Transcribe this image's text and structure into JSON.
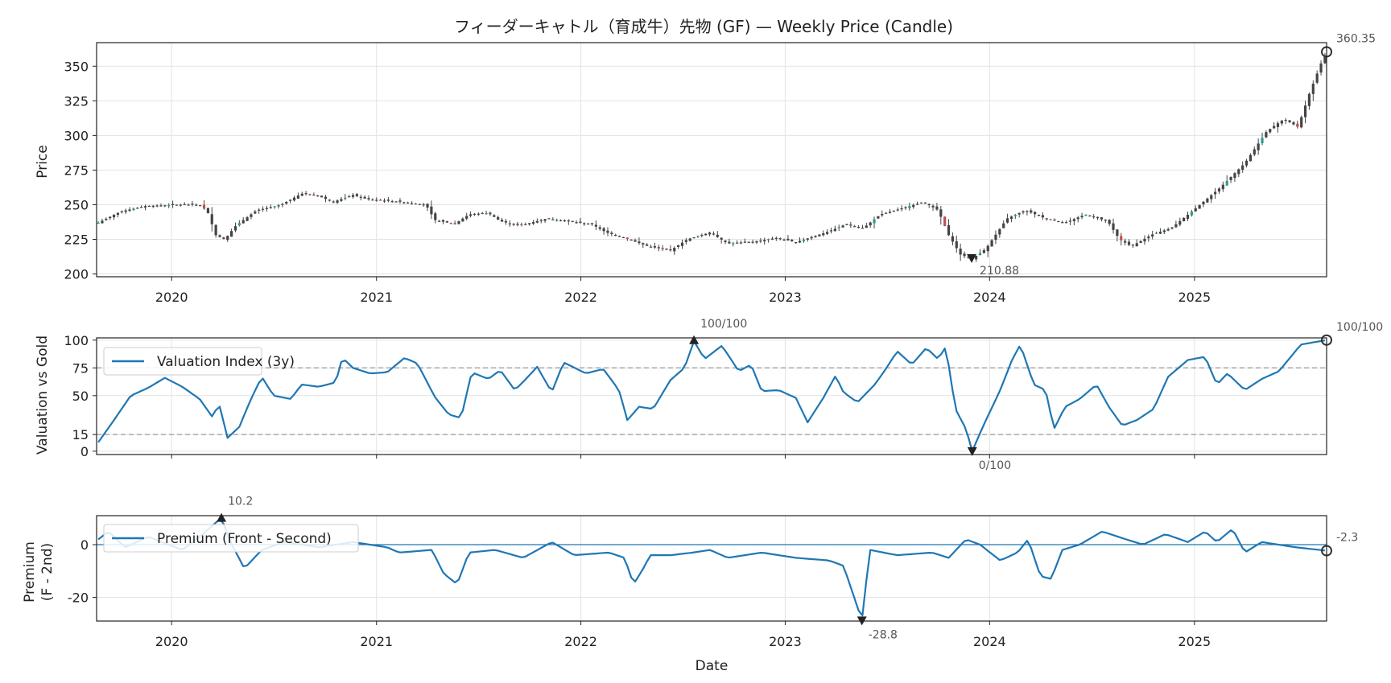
{
  "figure": {
    "title": "フィーダーキャトル（育成牛）先物 (GF) — Weekly Price (Candle)",
    "xlabel": "Date"
  },
  "chart_data": [
    {
      "type": "candlestick",
      "ylabel": "Price",
      "ylim": [
        198,
        367
      ],
      "yticks": [
        200,
        225,
        250,
        275,
        300,
        325,
        350
      ],
      "x_tick_labels": [
        "2020",
        "2021",
        "2022",
        "2023",
        "2024",
        "2025"
      ],
      "x_range": [
        "2019-08-20",
        "2025-08-25"
      ],
      "grid": true,
      "close_anchors": [
        [
          "2019-08-23",
          237
        ],
        [
          "2019-10-01",
          245
        ],
        [
          "2019-11-15",
          249
        ],
        [
          "2020-01-15",
          250
        ],
        [
          "2020-02-20",
          250
        ],
        [
          "2020-03-05",
          245
        ],
        [
          "2020-03-20",
          228
        ],
        [
          "2020-04-05",
          225
        ],
        [
          "2020-04-25",
          235
        ],
        [
          "2020-06-01",
          246
        ],
        [
          "2020-07-15",
          250
        ],
        [
          "2020-08-20",
          258
        ],
        [
          "2020-09-15",
          257
        ],
        [
          "2020-10-15",
          252
        ],
        [
          "2020-11-20",
          257
        ],
        [
          "2020-12-15",
          254
        ],
        [
          "2021-02-15",
          252
        ],
        [
          "2021-03-30",
          250
        ],
        [
          "2021-04-15",
          239
        ],
        [
          "2021-05-20",
          236
        ],
        [
          "2021-06-15",
          243
        ],
        [
          "2021-07-20",
          244
        ],
        [
          "2021-08-10",
          238
        ],
        [
          "2021-09-15",
          235
        ],
        [
          "2021-11-01",
          240
        ],
        [
          "2021-12-10",
          238
        ],
        [
          "2022-01-20",
          236
        ],
        [
          "2022-02-15",
          230
        ],
        [
          "2022-03-20",
          226
        ],
        [
          "2022-05-01",
          220
        ],
        [
          "2022-06-10",
          217
        ],
        [
          "2022-07-10",
          225
        ],
        [
          "2022-08-20",
          230
        ],
        [
          "2022-09-20",
          222
        ],
        [
          "2022-11-01",
          223
        ],
        [
          "2022-12-15",
          226
        ],
        [
          "2023-01-20",
          223
        ],
        [
          "2023-03-15",
          230
        ],
        [
          "2023-04-20",
          236
        ],
        [
          "2023-05-20",
          233
        ],
        [
          "2023-06-20",
          243
        ],
        [
          "2023-07-25",
          247
        ],
        [
          "2023-09-05",
          252
        ],
        [
          "2023-10-01",
          246
        ],
        [
          "2023-10-20",
          228
        ],
        [
          "2023-11-10",
          214
        ],
        [
          "2023-11-30",
          210.88
        ],
        [
          "2023-12-25",
          218
        ],
        [
          "2024-02-01",
          240
        ],
        [
          "2024-03-05",
          246
        ],
        [
          "2024-04-10",
          240
        ],
        [
          "2024-05-15",
          237
        ],
        [
          "2024-06-20",
          243
        ],
        [
          "2024-07-30",
          238
        ],
        [
          "2024-08-20",
          225
        ],
        [
          "2024-09-10",
          220
        ],
        [
          "2024-10-20",
          229
        ],
        [
          "2024-11-20",
          233
        ],
        [
          "2024-12-30",
          246
        ],
        [
          "2025-02-15",
          262
        ],
        [
          "2025-04-01",
          280
        ],
        [
          "2025-05-10",
          303
        ],
        [
          "2025-06-10",
          312
        ],
        [
          "2025-07-05",
          306
        ],
        [
          "2025-07-25",
          330
        ],
        [
          "2025-08-15",
          352
        ],
        [
          "2025-08-25",
          360.35
        ]
      ],
      "annotations": [
        {
          "date": "2023-11-30",
          "value": 210.88,
          "text": "210.88",
          "marker": "min"
        },
        {
          "date": "2025-08-25",
          "value": 360.35,
          "text": "360.35",
          "marker": "last"
        }
      ],
      "colors": {
        "body": "#444444",
        "up": "#2a9d8f",
        "down": "#c44e52"
      }
    },
    {
      "type": "line",
      "ylabel": "Valuation vs Gold",
      "ylim": [
        -3,
        102
      ],
      "yticks": [
        0,
        15,
        50,
        75,
        100
      ],
      "hlines": [
        15,
        75
      ],
      "series": [
        {
          "name": "Valuation Index (3y)",
          "color": "#1f77b4"
        }
      ],
      "anchors": [
        [
          "2019-08-23",
          8
        ],
        [
          "2019-09-20",
          28
        ],
        [
          "2019-10-20",
          50
        ],
        [
          "2019-11-20",
          57
        ],
        [
          "2019-12-20",
          66
        ],
        [
          "2020-01-20",
          58
        ],
        [
          "2020-02-20",
          47
        ],
        [
          "2020-03-15",
          30
        ],
        [
          "2020-03-25",
          44
        ],
        [
          "2020-04-10",
          12
        ],
        [
          "2020-05-01",
          22
        ],
        [
          "2020-05-20",
          45
        ],
        [
          "2020-06-10",
          67
        ],
        [
          "2020-07-01",
          50
        ],
        [
          "2020-08-01",
          47
        ],
        [
          "2020-08-20",
          60
        ],
        [
          "2020-09-20",
          58
        ],
        [
          "2020-10-20",
          62
        ],
        [
          "2020-11-01",
          84
        ],
        [
          "2020-11-20",
          75
        ],
        [
          "2020-12-20",
          70
        ],
        [
          "2021-01-20",
          71
        ],
        [
          "2021-02-20",
          84
        ],
        [
          "2021-03-15",
          79
        ],
        [
          "2021-04-15",
          49
        ],
        [
          "2021-05-10",
          33
        ],
        [
          "2021-06-01",
          30
        ],
        [
          "2021-06-20",
          71
        ],
        [
          "2021-07-20",
          65
        ],
        [
          "2021-08-10",
          73
        ],
        [
          "2021-09-05",
          55
        ],
        [
          "2021-09-25",
          65
        ],
        [
          "2021-10-15",
          76
        ],
        [
          "2021-11-10",
          53
        ],
        [
          "2021-12-01",
          80
        ],
        [
          "2022-01-10",
          70
        ],
        [
          "2022-02-10",
          74
        ],
        [
          "2022-03-10",
          55
        ],
        [
          "2022-03-25",
          28
        ],
        [
          "2022-04-15",
          40
        ],
        [
          "2022-05-10",
          38
        ],
        [
          "2022-06-10",
          64
        ],
        [
          "2022-07-05",
          75
        ],
        [
          "2022-07-22",
          99
        ],
        [
          "2022-08-10",
          83
        ],
        [
          "2022-09-10",
          95
        ],
        [
          "2022-10-10",
          72
        ],
        [
          "2022-11-01",
          78
        ],
        [
          "2022-11-20",
          54
        ],
        [
          "2022-12-20",
          55
        ],
        [
          "2023-01-20",
          48
        ],
        [
          "2023-02-10",
          26
        ],
        [
          "2023-03-10",
          48
        ],
        [
          "2023-04-01",
          68
        ],
        [
          "2023-04-15",
          53
        ],
        [
          "2023-05-10",
          44
        ],
        [
          "2023-06-10",
          60
        ],
        [
          "2023-07-01",
          75
        ],
        [
          "2023-07-20",
          90
        ],
        [
          "2023-08-15",
          78
        ],
        [
          "2023-09-10",
          93
        ],
        [
          "2023-10-01",
          83
        ],
        [
          "2023-10-15",
          94
        ],
        [
          "2023-11-01",
          38
        ],
        [
          "2023-11-20",
          20
        ],
        [
          "2023-12-01",
          0
        ],
        [
          "2023-12-20",
          22
        ],
        [
          "2024-01-20",
          55
        ],
        [
          "2024-02-10",
          82
        ],
        [
          "2024-02-25",
          96
        ],
        [
          "2024-03-20",
          60
        ],
        [
          "2024-04-10",
          55
        ],
        [
          "2024-04-25",
          20
        ],
        [
          "2024-05-15",
          40
        ],
        [
          "2024-06-10",
          47
        ],
        [
          "2024-07-10",
          60
        ],
        [
          "2024-08-01",
          40
        ],
        [
          "2024-08-25",
          23
        ],
        [
          "2024-09-20",
          28
        ],
        [
          "2024-10-20",
          38
        ],
        [
          "2024-11-15",
          67
        ],
        [
          "2024-12-20",
          82
        ],
        [
          "2025-01-20",
          85
        ],
        [
          "2025-02-10",
          60
        ],
        [
          "2025-03-01",
          70
        ],
        [
          "2025-04-01",
          55
        ],
        [
          "2025-05-01",
          65
        ],
        [
          "2025-06-01",
          72
        ],
        [
          "2025-07-10",
          96
        ],
        [
          "2025-08-25",
          100
        ]
      ],
      "annotations": [
        {
          "date": "2022-07-22",
          "value": 100,
          "text": "100/100",
          "marker": "max"
        },
        {
          "date": "2023-12-01",
          "value": 0,
          "text": "0/100",
          "marker": "min"
        },
        {
          "date": "2025-08-25",
          "value": 100,
          "text": "100/100",
          "marker": "last"
        }
      ]
    },
    {
      "type": "line",
      "ylabel": [
        "Premium",
        "(F - 2nd)"
      ],
      "ylim": [
        -29,
        11
      ],
      "yticks": [
        -20,
        0
      ],
      "hlines": [
        0
      ],
      "series": [
        {
          "name": "Premium (Front - Second)",
          "color": "#1f77b4"
        }
      ],
      "anchors": [
        [
          "2019-08-23",
          2
        ],
        [
          "2019-09-10",
          5
        ],
        [
          "2019-10-10",
          -1
        ],
        [
          "2019-11-20",
          3
        ],
        [
          "2020-01-20",
          -2
        ],
        [
          "2020-02-20",
          3
        ],
        [
          "2020-03-30",
          10.2
        ],
        [
          "2020-04-15",
          1
        ],
        [
          "2020-05-10",
          -9
        ],
        [
          "2020-06-10",
          -2
        ],
        [
          "2020-07-20",
          1
        ],
        [
          "2020-09-20",
          -1
        ],
        [
          "2020-11-20",
          1
        ],
        [
          "2021-01-20",
          -1
        ],
        [
          "2021-02-10",
          -3
        ],
        [
          "2021-04-10",
          -2
        ],
        [
          "2021-05-01",
          -11
        ],
        [
          "2021-05-25",
          -15
        ],
        [
          "2021-06-15",
          -3
        ],
        [
          "2021-08-01",
          -2
        ],
        [
          "2021-09-20",
          -5
        ],
        [
          "2021-11-10",
          1
        ],
        [
          "2021-12-20",
          -4
        ],
        [
          "2022-02-20",
          -3
        ],
        [
          "2022-03-20",
          -5
        ],
        [
          "2022-04-05",
          -15
        ],
        [
          "2022-04-20",
          -10
        ],
        [
          "2022-05-05",
          -4
        ],
        [
          "2022-06-10",
          -4
        ],
        [
          "2022-07-20",
          -3
        ],
        [
          "2022-08-20",
          -2
        ],
        [
          "2022-09-20",
          -5
        ],
        [
          "2022-11-20",
          -3
        ],
        [
          "2023-01-20",
          -5
        ],
        [
          "2023-03-20",
          -6
        ],
        [
          "2023-04-15",
          -8
        ],
        [
          "2023-05-01",
          -18
        ],
        [
          "2023-05-18",
          -28.8
        ],
        [
          "2023-06-01",
          -2
        ],
        [
          "2023-07-20",
          -4
        ],
        [
          "2023-09-20",
          -3
        ],
        [
          "2023-10-20",
          -5
        ],
        [
          "2023-11-20",
          2
        ],
        [
          "2023-12-15",
          0
        ],
        [
          "2024-01-20",
          -6
        ],
        [
          "2024-02-20",
          -3
        ],
        [
          "2024-03-10",
          2
        ],
        [
          "2024-04-01",
          -12
        ],
        [
          "2024-04-20",
          -13
        ],
        [
          "2024-05-10",
          -2
        ],
        [
          "2024-06-10",
          0
        ],
        [
          "2024-07-20",
          5
        ],
        [
          "2024-09-01",
          2
        ],
        [
          "2024-10-01",
          0
        ],
        [
          "2024-11-10",
          4
        ],
        [
          "2024-12-20",
          1
        ],
        [
          "2025-01-20",
          5
        ],
        [
          "2025-02-10",
          1
        ],
        [
          "2025-03-10",
          6
        ],
        [
          "2025-04-01",
          -3
        ],
        [
          "2025-05-01",
          1
        ],
        [
          "2025-07-01",
          -1
        ],
        [
          "2025-08-25",
          -2.3
        ]
      ],
      "annotations": [
        {
          "date": "2020-03-30",
          "value": 10.2,
          "text": "10.2",
          "marker": "max"
        },
        {
          "date": "2023-05-18",
          "value": -28.8,
          "text": "-28.8",
          "marker": "min"
        },
        {
          "date": "2025-08-25",
          "value": -2.3,
          "text": "-2.3",
          "marker": "last"
        }
      ]
    }
  ]
}
